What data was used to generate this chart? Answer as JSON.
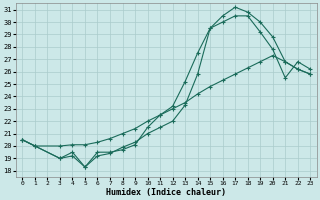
{
  "xlabel": "Humidex (Indice chaleur)",
  "xlim": [
    -0.5,
    23.5
  ],
  "ylim": [
    17.5,
    31.5
  ],
  "yticks": [
    18,
    19,
    20,
    21,
    22,
    23,
    24,
    25,
    26,
    27,
    28,
    29,
    30,
    31
  ],
  "xticks": [
    0,
    1,
    2,
    3,
    4,
    5,
    6,
    7,
    8,
    9,
    10,
    11,
    12,
    13,
    14,
    15,
    16,
    17,
    18,
    19,
    20,
    21,
    22,
    23
  ],
  "bg_color": "#cce8e8",
  "grid_color": "#aacccc",
  "line_color": "#1a6b5a",
  "line1_x": [
    0,
    1,
    3,
    4,
    5,
    6,
    7,
    8,
    9,
    10,
    11,
    12,
    13,
    14,
    15,
    16,
    17,
    18,
    19,
    20,
    21,
    22,
    23
  ],
  "line1_y": [
    20.5,
    20.0,
    19.0,
    19.5,
    18.3,
    19.5,
    19.5,
    19.7,
    20.1,
    21.5,
    22.5,
    23.2,
    25.2,
    27.5,
    29.5,
    30.5,
    31.2,
    30.8,
    30.0,
    28.8,
    26.8,
    26.2,
    25.8
  ],
  "line2_x": [
    0,
    1,
    3,
    4,
    5,
    6,
    7,
    8,
    9,
    10,
    11,
    12,
    13,
    14,
    15,
    16,
    17,
    18,
    19,
    20,
    21,
    22,
    23
  ],
  "line2_y": [
    20.5,
    20.0,
    19.0,
    19.2,
    18.3,
    19.2,
    19.4,
    19.9,
    20.3,
    21.0,
    21.5,
    22.0,
    23.3,
    25.8,
    29.5,
    30.0,
    30.5,
    30.5,
    29.2,
    27.8,
    25.5,
    26.8,
    26.2
  ],
  "line3_x": [
    0,
    1,
    3,
    4,
    5,
    6,
    7,
    8,
    9,
    10,
    11,
    12,
    13,
    14,
    15,
    16,
    17,
    18,
    19,
    20,
    21,
    22,
    23
  ],
  "line3_y": [
    20.5,
    20.0,
    20.0,
    20.1,
    20.1,
    20.3,
    20.6,
    21.0,
    21.4,
    22.0,
    22.5,
    23.0,
    23.5,
    24.2,
    24.8,
    25.3,
    25.8,
    26.3,
    26.8,
    27.3,
    26.8,
    26.2,
    25.8
  ]
}
